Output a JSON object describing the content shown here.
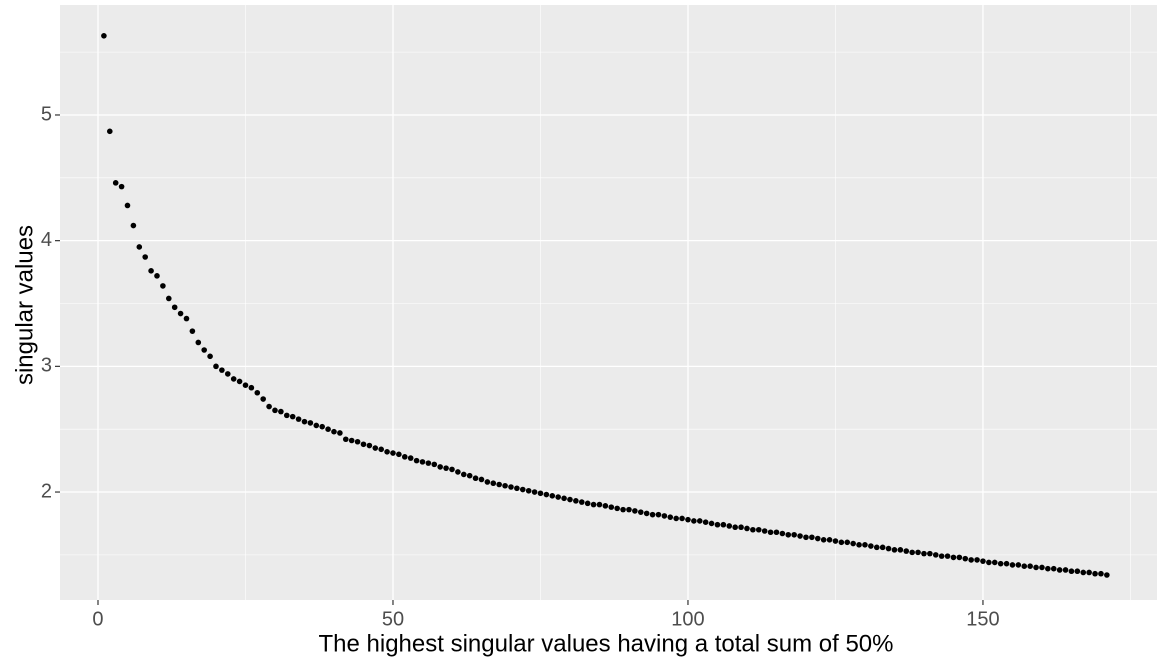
{
  "chart_data": {
    "type": "scatter",
    "x_label": "The highest singular values having a total sum of 50%",
    "y_label": "singular values",
    "color": "#000000",
    "grid": true,
    "xlim": [
      -6.44,
      179.5
    ],
    "ylim": [
      1.141,
      5.875
    ],
    "xticks": [
      0,
      50,
      100,
      150
    ],
    "yticks": [
      2,
      3,
      4,
      5
    ],
    "xminor": [
      25,
      75,
      125,
      175
    ],
    "yminor": [
      1.5,
      2.5,
      3.5,
      4.5,
      5.5
    ],
    "x": [
      1,
      2,
      3,
      4,
      5,
      6,
      7,
      8,
      9,
      10,
      11,
      12,
      13,
      14,
      15,
      16,
      17,
      18,
      19,
      20,
      21,
      22,
      23,
      24,
      25,
      26,
      27,
      28,
      29,
      30,
      31,
      32,
      33,
      34,
      35,
      36,
      37,
      38,
      39,
      40,
      41,
      42,
      43,
      44,
      45,
      46,
      47,
      48,
      49,
      50,
      51,
      52,
      53,
      54,
      55,
      56,
      57,
      58,
      59,
      60,
      61,
      62,
      63,
      64,
      65,
      66,
      67,
      68,
      69,
      70,
      71,
      72,
      73,
      74,
      75,
      76,
      77,
      78,
      79,
      80,
      81,
      82,
      83,
      84,
      85,
      86,
      87,
      88,
      89,
      90,
      91,
      92,
      93,
      94,
      95,
      96,
      97,
      98,
      99,
      100,
      101,
      102,
      103,
      104,
      105,
      106,
      107,
      108,
      109,
      110,
      111,
      112,
      113,
      114,
      115,
      116,
      117,
      118,
      119,
      120,
      121,
      122,
      123,
      124,
      125,
      126,
      127,
      128,
      129,
      130,
      131,
      132,
      133,
      134,
      135,
      136,
      137,
      138,
      139,
      140,
      141,
      142,
      143,
      144,
      145,
      146,
      147,
      148,
      149,
      150,
      151,
      152,
      153,
      154,
      155,
      156,
      157,
      158,
      159,
      160,
      161,
      162,
      163,
      164,
      165,
      166,
      167,
      168,
      169,
      170,
      171
    ],
    "values": [
      5.63,
      4.87,
      4.46,
      4.43,
      4.28,
      4.12,
      3.95,
      3.87,
      3.76,
      3.72,
      3.64,
      3.54,
      3.47,
      3.42,
      3.38,
      3.28,
      3.19,
      3.13,
      3.08,
      3.0,
      2.97,
      2.94,
      2.9,
      2.88,
      2.85,
      2.83,
      2.79,
      2.74,
      2.68,
      2.65,
      2.64,
      2.61,
      2.6,
      2.58,
      2.56,
      2.55,
      2.53,
      2.52,
      2.5,
      2.48,
      2.47,
      2.42,
      2.41,
      2.4,
      2.38,
      2.37,
      2.35,
      2.34,
      2.32,
      2.31,
      2.3,
      2.28,
      2.27,
      2.25,
      2.24,
      2.23,
      2.22,
      2.2,
      2.19,
      2.18,
      2.16,
      2.14,
      2.13,
      2.11,
      2.1,
      2.08,
      2.07,
      2.06,
      2.05,
      2.04,
      2.03,
      2.02,
      2.01,
      2.0,
      1.99,
      1.98,
      1.97,
      1.96,
      1.95,
      1.94,
      1.93,
      1.92,
      1.91,
      1.9,
      1.9,
      1.89,
      1.88,
      1.87,
      1.86,
      1.86,
      1.85,
      1.84,
      1.83,
      1.82,
      1.82,
      1.81,
      1.8,
      1.79,
      1.79,
      1.78,
      1.77,
      1.77,
      1.76,
      1.75,
      1.74,
      1.74,
      1.73,
      1.72,
      1.72,
      1.71,
      1.7,
      1.7,
      1.69,
      1.68,
      1.68,
      1.67,
      1.66,
      1.66,
      1.65,
      1.64,
      1.64,
      1.63,
      1.62,
      1.62,
      1.61,
      1.6,
      1.6,
      1.59,
      1.58,
      1.58,
      1.57,
      1.56,
      1.56,
      1.55,
      1.54,
      1.54,
      1.53,
      1.52,
      1.52,
      1.51,
      1.51,
      1.5,
      1.49,
      1.49,
      1.48,
      1.48,
      1.47,
      1.46,
      1.46,
      1.45,
      1.44,
      1.44,
      1.43,
      1.43,
      1.42,
      1.42,
      1.41,
      1.41,
      1.4,
      1.4,
      1.39,
      1.39,
      1.38,
      1.38,
      1.37,
      1.37,
      1.36,
      1.36,
      1.35,
      1.35,
      1.34
    ]
  }
}
